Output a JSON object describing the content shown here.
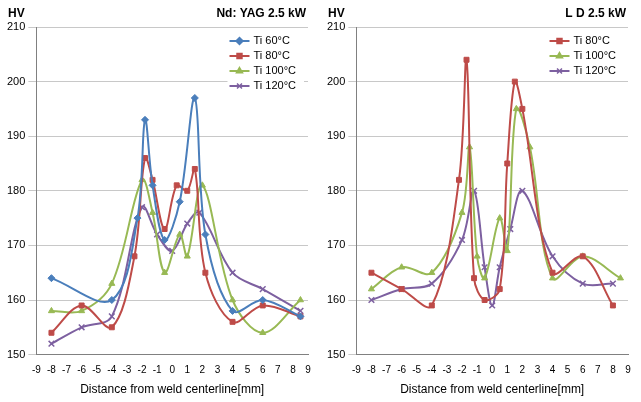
{
  "chart_data": [
    {
      "type": "line",
      "title": "Nd: YAG 2.5 kW",
      "ylabel": "HV",
      "xlabel": "Distance from weld centerline[mm]",
      "xlim": [
        -9,
        9
      ],
      "xticks": [
        -9,
        -8,
        -7,
        -6,
        -5,
        -4,
        -3,
        -2,
        -1,
        0,
        1,
        2,
        3,
        4,
        5,
        6,
        7,
        8,
        9
      ],
      "ylim": [
        150,
        210
      ],
      "yticks": [
        150,
        160,
        170,
        180,
        190,
        200,
        210
      ],
      "grid": true,
      "legend": "upper right",
      "series": [
        {
          "name": "Ti 60°C",
          "color": "#4a7ebb",
          "marker": "diamond",
          "x": [
            -8,
            -4,
            -2.3,
            -1.8,
            -1.3,
            -0.5,
            0.5,
            1.5,
            2.2,
            4,
            6,
            8.5
          ],
          "values": [
            164,
            160,
            175,
            193,
            181,
            171,
            178,
            197,
            172,
            158,
            160,
            157
          ]
        },
        {
          "name": "Ti 80°C",
          "color": "#be4b48",
          "marker": "square",
          "x": [
            -8,
            -6,
            -4,
            -2.5,
            -1.8,
            -1.3,
            -0.5,
            0.3,
            1,
            1.5,
            2.2,
            4,
            6,
            8.5
          ],
          "values": [
            154,
            159,
            155,
            168,
            186,
            182,
            173,
            181,
            180,
            184,
            165,
            156,
            159,
            157
          ]
        },
        {
          "name": "Ti 100°C",
          "color": "#98b954",
          "marker": "triangle",
          "x": [
            -8,
            -6,
            -4,
            -2,
            -1.3,
            -0.5,
            0.5,
            1,
            2,
            4,
            6,
            8.5
          ],
          "values": [
            158,
            158,
            163,
            182,
            176,
            165,
            172,
            168,
            181,
            160,
            154,
            160
          ]
        },
        {
          "name": "Ti 120°C",
          "color": "#7d60a0",
          "marker": "cross",
          "x": [
            -8,
            -6,
            -4,
            -2,
            -1,
            0,
            1,
            1.8,
            4,
            6,
            8.5
          ],
          "values": [
            152,
            155,
            157,
            177,
            172,
            169,
            174,
            176,
            165,
            162,
            158
          ]
        }
      ]
    },
    {
      "type": "line",
      "title": "L D 2.5 kW",
      "ylabel": "HV",
      "xlabel": "Distance from weld centerline[mm]",
      "xlim": [
        -9,
        9
      ],
      "xticks": [
        -9,
        -8,
        -7,
        -6,
        -5,
        -4,
        -3,
        -2,
        -1,
        0,
        1,
        2,
        3,
        4,
        5,
        6,
        7,
        8,
        9
      ],
      "ylim": [
        150,
        210
      ],
      "yticks": [
        150,
        160,
        170,
        180,
        190,
        200,
        210
      ],
      "grid": true,
      "legend": "upper right",
      "series": [
        {
          "name": "Ti 80°C",
          "color": "#be4b48",
          "marker": "square",
          "x": [
            -8,
            -6,
            -4,
            -2.2,
            -1.7,
            -1.2,
            -0.5,
            0.5,
            1,
            1.5,
            2,
            4,
            6,
            8
          ],
          "values": [
            165,
            162,
            159,
            182,
            204,
            164,
            160,
            162,
            185,
            200,
            195,
            165,
            168,
            159
          ]
        },
        {
          "name": "Ti 100°C",
          "color": "#98b954",
          "marker": "triangle",
          "x": [
            -8,
            -6,
            -4,
            -2,
            -1.5,
            -1,
            -0.5,
            0.5,
            1,
            1.6,
            2.5,
            4,
            6,
            8.5
          ],
          "values": [
            162,
            166,
            165,
            176,
            188,
            168,
            164,
            175,
            169,
            195,
            188,
            164,
            168,
            164
          ]
        },
        {
          "name": "Ti 120°C",
          "color": "#7d60a0",
          "marker": "cross",
          "x": [
            -8,
            -6,
            -4,
            -2,
            -1.2,
            -0.5,
            0,
            0.5,
            1.2,
            2,
            4,
            6,
            8
          ],
          "values": [
            160,
            162,
            163,
            171,
            180,
            166,
            159,
            166,
            173,
            180,
            168,
            163,
            163
          ]
        }
      ]
    }
  ]
}
